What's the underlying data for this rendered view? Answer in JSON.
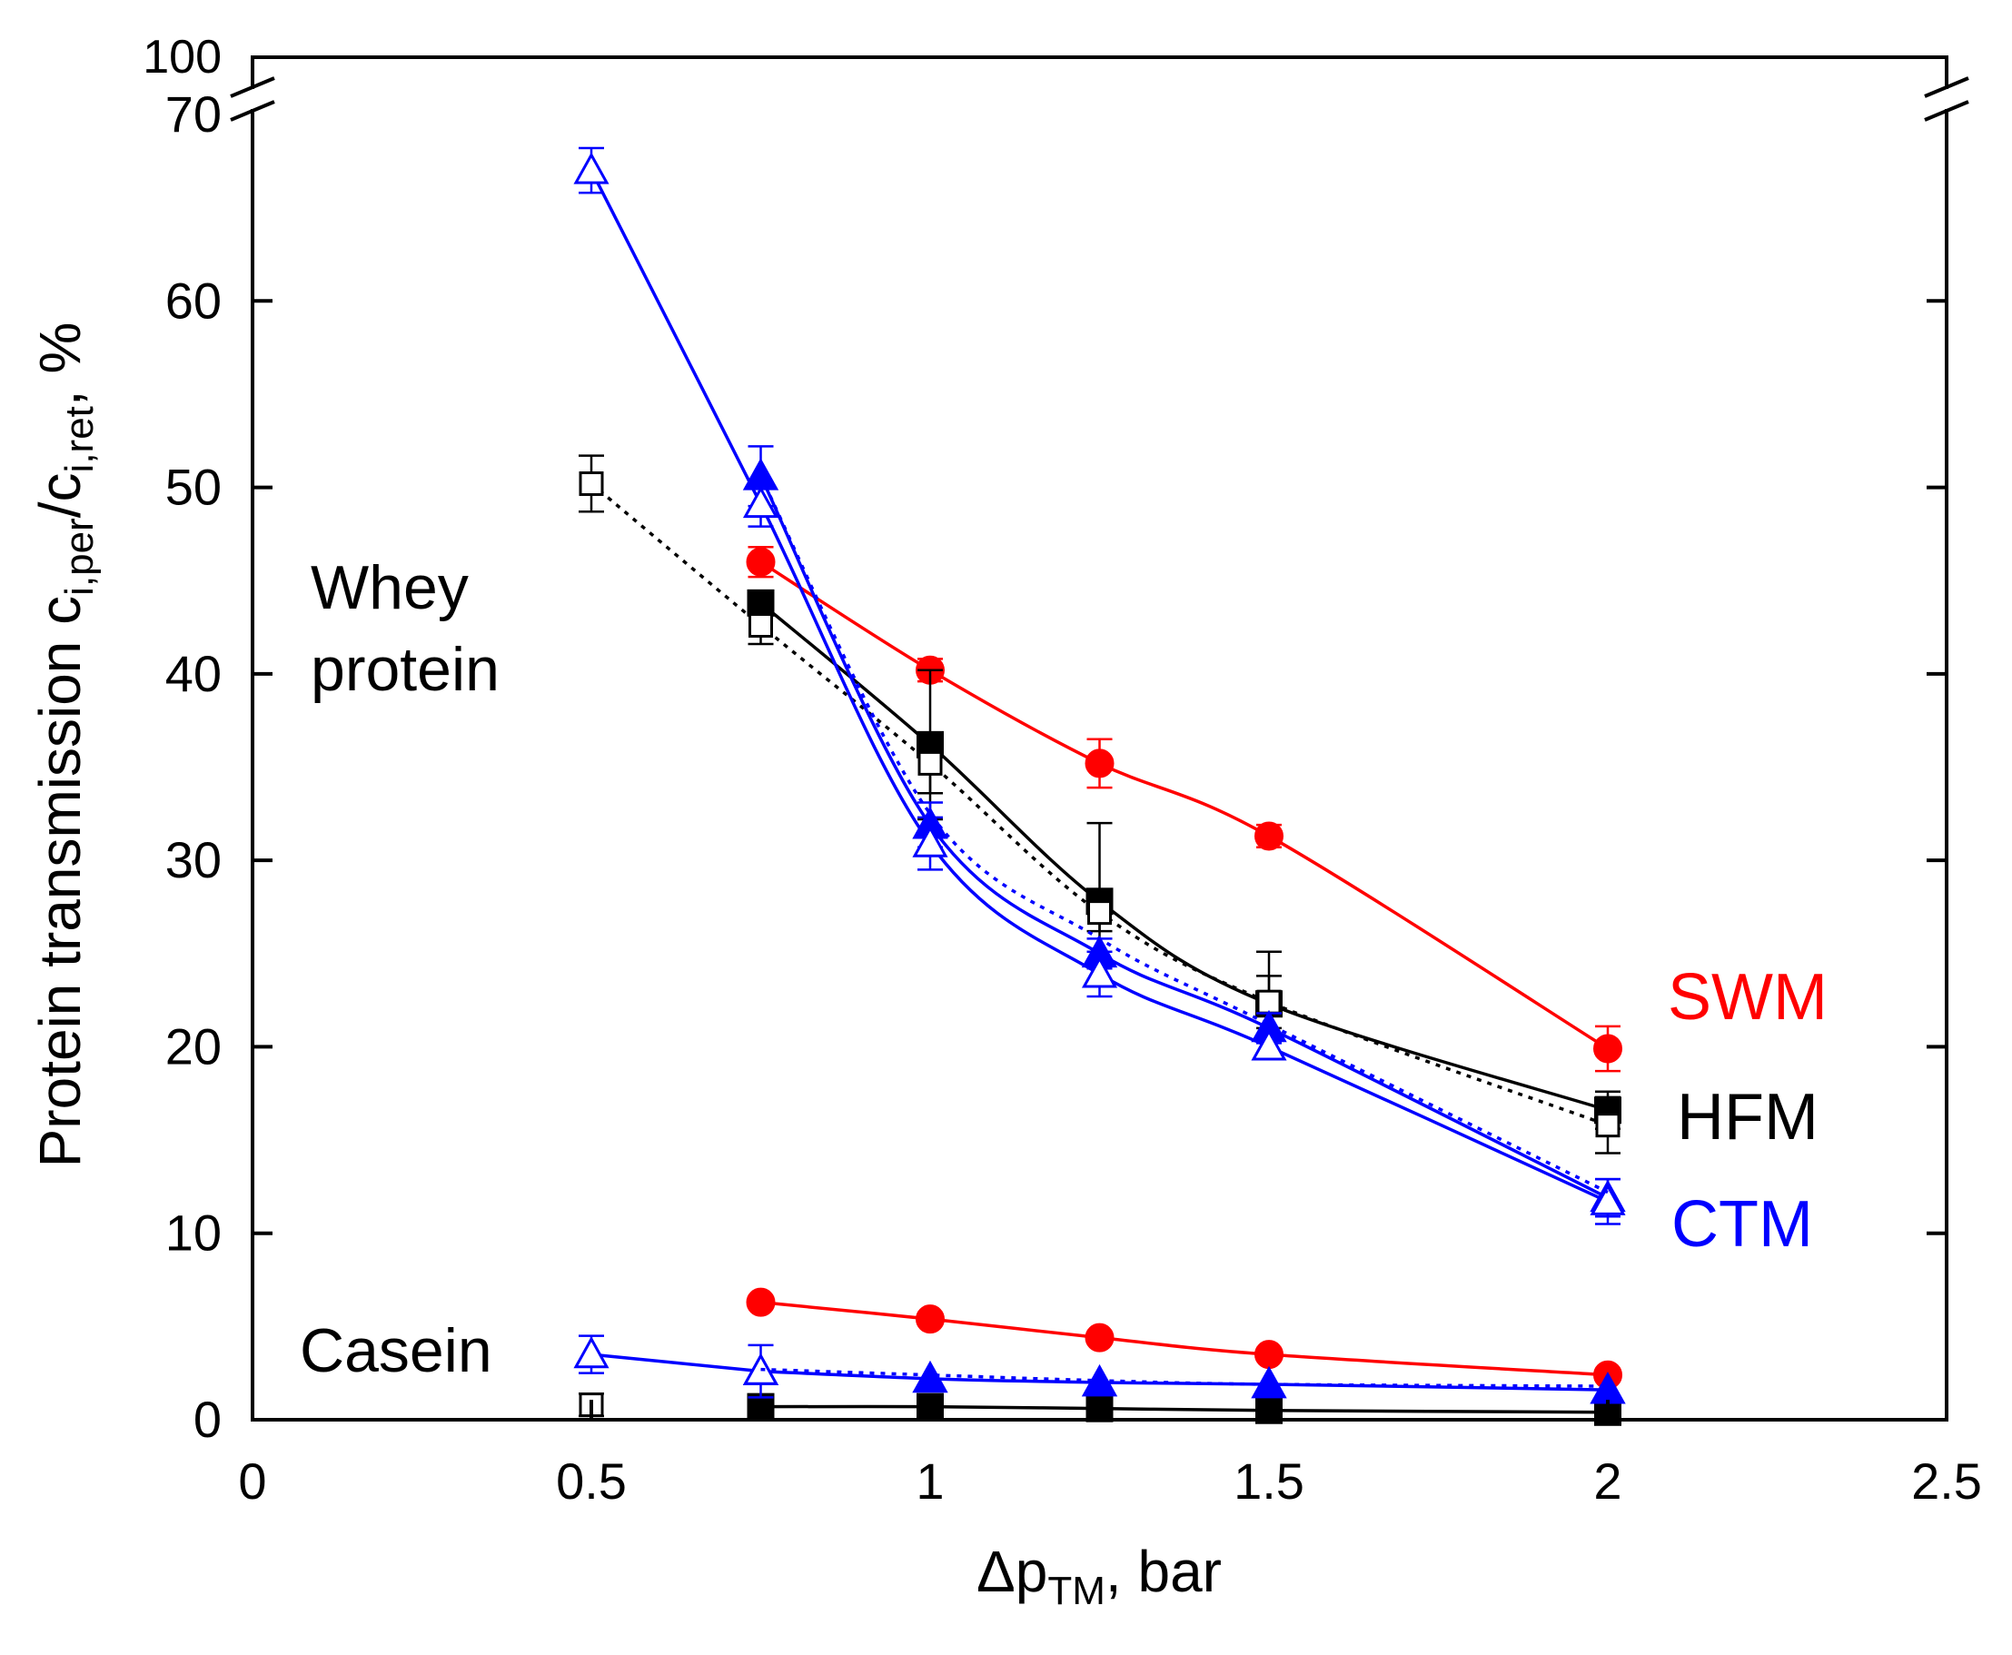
{
  "chart_data": {
    "type": "line",
    "title": "",
    "xlabel_main": "Δp",
    "xlabel_sub": "TM",
    "xlabel_tail": ", bar",
    "ylabel_main": "Protein transmission c",
    "ylabel_sub1": "i,per",
    "ylabel_mid": "/c",
    "ylabel_sub2": "i,ret",
    "ylabel_tail": ", %",
    "xlim": [
      0,
      2.5
    ],
    "ylim": [
      0,
      70
    ],
    "y_break_top_label": "100",
    "x_ticks": [
      0,
      0.5,
      1,
      1.5,
      2,
      2.5
    ],
    "x_tick_labels": [
      "0",
      "0.5",
      "1",
      "1.5",
      "2",
      "2.5"
    ],
    "y_ticks": [
      0,
      10,
      20,
      30,
      40,
      50,
      60,
      70
    ],
    "y_tick_labels": [
      "0",
      "10",
      "20",
      "30",
      "40",
      "50",
      "60",
      "70"
    ],
    "grid": false,
    "colors": {
      "SWM": "#ff0000",
      "HFM": "#000000",
      "CTM": "#0000ff"
    },
    "annotations": {
      "whey_line1": "Whey",
      "whey_line2": "protein",
      "casein": "Casein",
      "swm": "SWM",
      "hfm": "HFM",
      "ctm": "CTM"
    },
    "series": [
      {
        "membrane": "SWM",
        "group": "whey",
        "marker": "circle-filled",
        "line": "solid",
        "x": [
          0.75,
          1,
          1.25,
          1.5,
          2
        ],
        "y": [
          46,
          40.2,
          35.2,
          31.3,
          19.9
        ],
        "err": [
          0.8,
          0.6,
          1.3,
          0.6,
          1.2
        ]
      },
      {
        "membrane": "SWM",
        "group": "casein",
        "marker": "circle-filled",
        "line": "solid",
        "x": [
          0.75,
          1,
          1.25,
          1.5,
          2
        ],
        "y": [
          6.3,
          5.4,
          4.4,
          3.5,
          2.4
        ],
        "err": [
          0,
          0,
          0,
          0,
          0
        ]
      },
      {
        "membrane": "HFM",
        "group": "whey",
        "marker": "square-filled",
        "line": "solid",
        "x": [
          0.75,
          1,
          1.25,
          1.5,
          2
        ],
        "y": [
          43.8,
          36.2,
          27.8,
          22.3,
          16.6
        ],
        "err": [
          0,
          4.0,
          4.2,
          2.8,
          1.0
        ]
      },
      {
        "membrane": "HFM",
        "group": "whey",
        "marker": "square-open",
        "line": "dotted",
        "x": [
          0.5,
          0.75,
          1,
          1.25,
          1.5,
          2
        ],
        "y": [
          50.2,
          42.6,
          35.2,
          27.2,
          22.4,
          15.8
        ],
        "err": [
          1.5,
          1.0,
          1.6,
          1.0,
          1.4,
          1.5
        ]
      },
      {
        "membrane": "HFM",
        "group": "casein",
        "marker": "square-filled",
        "line": "solid",
        "x": [
          0.75,
          1,
          1.25,
          1.5,
          2
        ],
        "y": [
          0.7,
          0.7,
          0.6,
          0.5,
          0.4
        ],
        "err": [
          0,
          0,
          0,
          0,
          0
        ]
      },
      {
        "membrane": "HFM",
        "group": "casein",
        "marker": "square-open",
        "line": "solid",
        "x": [
          0.5
        ],
        "y": [
          0.8
        ],
        "err": [
          0.6
        ]
      },
      {
        "membrane": "CTM",
        "group": "whey",
        "marker": "triangle-filled",
        "line": "solid",
        "x": [
          0.75,
          1,
          1.25,
          1.5,
          2
        ],
        "y": [
          50.6,
          31.9,
          25.0,
          21.0,
          11.9
        ],
        "err": [
          1.6,
          1.2,
          0.8,
          0.8,
          1.0
        ]
      },
      {
        "membrane": "CTM",
        "group": "whey",
        "marker": "triangle-open",
        "line": "solid",
        "x": [
          0.5,
          0.75,
          1,
          1.25,
          1.5,
          2
        ],
        "y": [
          67.0,
          49.1,
          30.9,
          23.9,
          20.0,
          11.7
        ],
        "err": [
          1.2,
          1.2,
          1.4,
          1.2,
          0.6,
          1.2
        ]
      },
      {
        "membrane": "CTM",
        "group": "whey",
        "marker": "none",
        "line": "dotted",
        "x": [
          0.75,
          1,
          1.25,
          1.5,
          2
        ],
        "y": [
          50.6,
          32.5,
          25.8,
          21.2,
          12.2
        ],
        "err": []
      },
      {
        "membrane": "CTM",
        "group": "casein",
        "marker": "triangle-filled",
        "line": "solid",
        "x": [
          0.75,
          1,
          1.25,
          1.5,
          2
        ],
        "y": [
          2.6,
          2.2,
          2.0,
          1.9,
          1.6
        ],
        "err": [
          0,
          0,
          0,
          0,
          0
        ]
      },
      {
        "membrane": "CTM",
        "group": "casein",
        "marker": "triangle-open",
        "line": "solid",
        "x": [
          0.5,
          0.75
        ],
        "y": [
          3.5,
          2.6
        ],
        "err": [
          1.0,
          1.4
        ]
      },
      {
        "membrane": "CTM",
        "group": "casein",
        "marker": "none",
        "line": "dotted",
        "x": [
          0.75,
          1,
          1.25,
          1.5,
          2
        ],
        "y": [
          2.7,
          2.4,
          2.1,
          1.9,
          1.8
        ],
        "err": []
      }
    ]
  }
}
